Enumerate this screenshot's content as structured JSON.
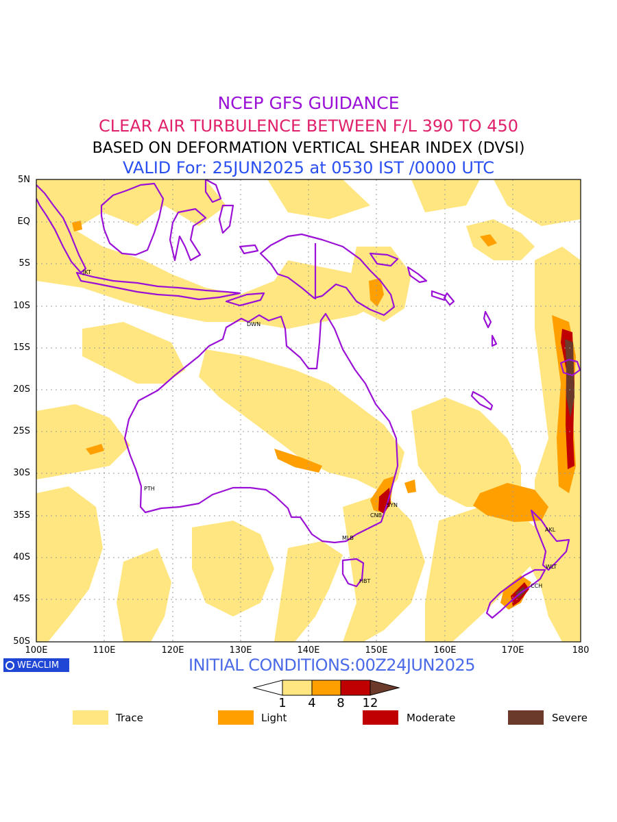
{
  "titles": {
    "line1": "NCEP GFS GUIDANCE",
    "line2": "CLEAR AIR TURBULENCE BETWEEN F/L 390 TO 450",
    "line3": "BASED ON DEFORMATION VERTICAL SHEAR INDEX (DVSI)",
    "line4": "VALID For: 25JUN2025 at 0530 IST /0000 UTC"
  },
  "axes": {
    "lat_labels": [
      "5N",
      "EQ",
      "5S",
      "10S",
      "15S",
      "20S",
      "25S",
      "30S",
      "35S",
      "40S",
      "45S",
      "50S"
    ],
    "lon_labels": [
      "100E",
      "110E",
      "120E",
      "130E",
      "140E",
      "150E",
      "160E",
      "170E",
      "180"
    ]
  },
  "cities": [
    {
      "code": "JKT"
    },
    {
      "code": "DWN"
    },
    {
      "code": "PTH"
    },
    {
      "code": "SYN"
    },
    {
      "code": "CNB"
    },
    {
      "code": "MLB"
    },
    {
      "code": "HBT"
    },
    {
      "code": "AKL"
    },
    {
      "code": "WLT"
    },
    {
      "code": "CCH"
    }
  ],
  "logo": "WEACLIM",
  "initial_conditions": "INITIAL CONDITIONS:00Z24JUN2025",
  "colorbar": {
    "ticks": [
      "1",
      "4",
      "8",
      "12"
    ],
    "colors": [
      "#ffe680",
      "#ffa000",
      "#c00000",
      "#6b3a2a"
    ]
  },
  "legend": [
    {
      "label": "Trace",
      "color": "#ffe680"
    },
    {
      "label": "Light",
      "color": "#ffa000"
    },
    {
      "label": "Moderate",
      "color": "#c00000"
    },
    {
      "label": "Severe",
      "color": "#6b3a2a"
    }
  ],
  "colors": {
    "coastline": "#9a10d6",
    "trace": "#ffe680",
    "light": "#ffa000",
    "moderate": "#c00000",
    "severe": "#6b3a2a"
  }
}
